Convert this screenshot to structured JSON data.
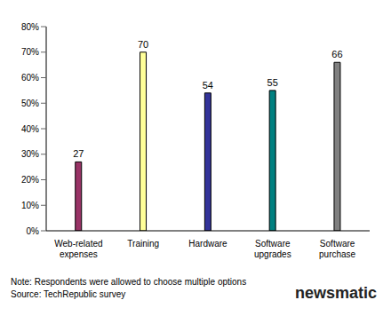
{
  "chart_data": {
    "type": "bar",
    "categories": [
      "Web-related expenses",
      "Training",
      "Hardware",
      "Software upgrades",
      "Software purchase"
    ],
    "values": [
      27,
      70,
      54,
      55,
      66
    ],
    "colors": [
      "#993366",
      "#ffff99",
      "#333399",
      "#008080",
      "#808080"
    ],
    "ylim": [
      0,
      80
    ],
    "yticks": [
      {
        "value": 0,
        "label": "0%"
      },
      {
        "value": 10,
        "label": "10%"
      },
      {
        "value": 20,
        "label": "20%"
      },
      {
        "value": 30,
        "label": "30%"
      },
      {
        "value": 40,
        "label": "40%"
      },
      {
        "value": 50,
        "label": "50%"
      },
      {
        "value": 60,
        "label": "60%"
      },
      {
        "value": 70,
        "label": "70%"
      },
      {
        "value": 80,
        "label": "80%"
      }
    ],
    "grid": false,
    "data_labels": true,
    "annotations": [
      "Note: Respondents were allowed to choose multiple options",
      "Source: TechRepublic survey"
    ]
  },
  "watermark": "newsmatic"
}
